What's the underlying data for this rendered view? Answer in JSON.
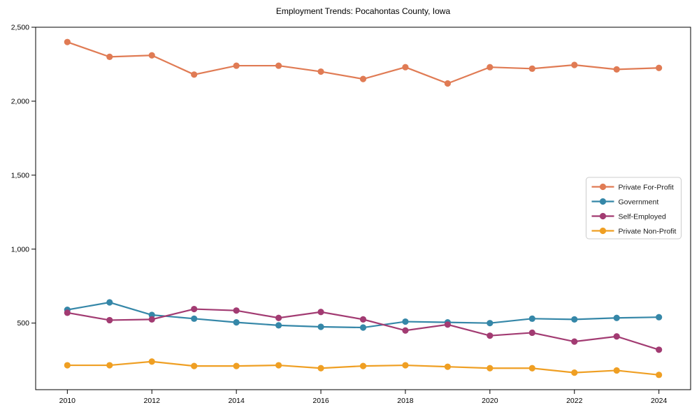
{
  "chart_data": {
    "type": "line",
    "title": "Employment Trends: Pocahontas County, Iowa",
    "xlabel": "",
    "ylabel": "",
    "x": [
      2010,
      2011,
      2012,
      2013,
      2014,
      2015,
      2016,
      2017,
      2018,
      2019,
      2020,
      2021,
      2022,
      2023,
      2024
    ],
    "series": [
      {
        "name": "Private For-Profit",
        "color": "#e07b54",
        "values": [
          2400,
          2300,
          2310,
          2180,
          2240,
          2240,
          2200,
          2150,
          2230,
          2120,
          2230,
          2220,
          2245,
          2215,
          2225
        ]
      },
      {
        "name": "Government",
        "color": "#3587a8",
        "values": [
          590,
          640,
          555,
          530,
          505,
          485,
          475,
          470,
          510,
          505,
          500,
          530,
          525,
          535,
          540
        ]
      },
      {
        "name": "Self-Employed",
        "color": "#a23b72",
        "values": [
          570,
          520,
          525,
          595,
          585,
          535,
          575,
          525,
          450,
          490,
          415,
          435,
          375,
          410,
          320
        ]
      },
      {
        "name": "Private Non-Profit",
        "color": "#ef9f23",
        "values": [
          215,
          215,
          240,
          210,
          210,
          215,
          195,
          210,
          215,
          205,
          195,
          195,
          165,
          180,
          150
        ]
      }
    ],
    "xticks": [
      2010,
      2012,
      2014,
      2016,
      2018,
      2020,
      2022,
      2024
    ],
    "yticks": [
      500,
      1000,
      1500,
      2000,
      2500
    ],
    "ytick_labels": [
      "500",
      "1,000",
      "1,500",
      "2,000",
      "2,500"
    ],
    "xlim": [
      2009.25,
      2024.75
    ],
    "ylim": [
      50,
      2500
    ],
    "grid": false,
    "legend_position": "center right",
    "marker": "circle",
    "background_color": "#ffffff",
    "axis_color": "#000000",
    "legend_border_color": "#cccccc"
  }
}
